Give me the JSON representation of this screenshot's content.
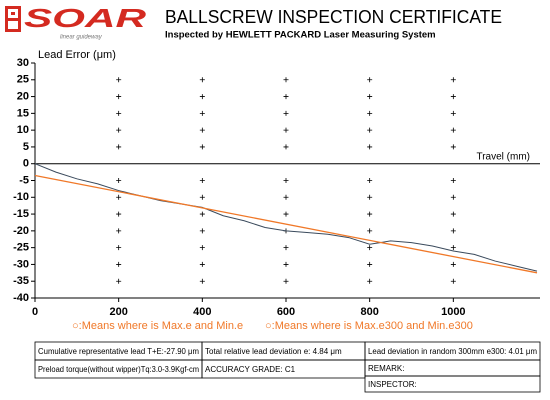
{
  "header": {
    "logo": "SOAR",
    "logo_sub": "linear guideway",
    "title": "BALLSCREW INSPECTION CERTIFICATE",
    "subtitle": "Inspected by HEWLETT PACKARD Laser Measuring System"
  },
  "chart_data": {
    "type": "line",
    "y_label": "Lead Error (μm)",
    "x_label": "Travel (mm)",
    "xlim": [
      0,
      1200
    ],
    "ylim": [
      -40,
      30
    ],
    "xticks": [
      0,
      200,
      400,
      600,
      800,
      1000
    ],
    "yticks": [
      -40,
      -35,
      -30,
      -25,
      -20,
      -15,
      -10,
      -5,
      0,
      5,
      10,
      15,
      20,
      25,
      30
    ],
    "grid": "plus",
    "series": [
      {
        "color": "#3a4a5c",
        "x": [
          0,
          50,
          100,
          150,
          200,
          250,
          300,
          350,
          400,
          450,
          500,
          550,
          600,
          650,
          700,
          750,
          800,
          850,
          900,
          950,
          1000,
          1050,
          1100,
          1150,
          1200
        ],
        "values": [
          0,
          -2.5,
          -4.5,
          -6,
          -8,
          -9.5,
          -11,
          -12,
          -13,
          -15.5,
          -17,
          -19,
          -20,
          -20.5,
          -21,
          -22,
          -24,
          -23,
          -23.5,
          -24.5,
          -26,
          -27,
          -29,
          -30.5,
          -32
        ]
      },
      {
        "color": "#f07828",
        "x": [
          0,
          1200
        ],
        "values": [
          -3.5,
          -32.5
        ]
      }
    ],
    "notes": [
      "○:Means where is Max.e and Min.e",
      "○:Means where is Max.e300 and Min.e300"
    ],
    "notes_color": "#f07828"
  },
  "table": {
    "left_rows": [
      [
        "Cumulative representative lead  T+E:-27.90 μm",
        "Total relative lead deviation e: 4.84 μm"
      ],
      [
        "Preload torque(without wipper)Tq:3.0-3.9Kgf-cm",
        "ACCURACY GRADE:  C1"
      ]
    ],
    "right_rows": [
      "Lead deviation in random 300mm e300: 4.01 μm",
      "REMARK:",
      "INSPECTOR:"
    ]
  }
}
